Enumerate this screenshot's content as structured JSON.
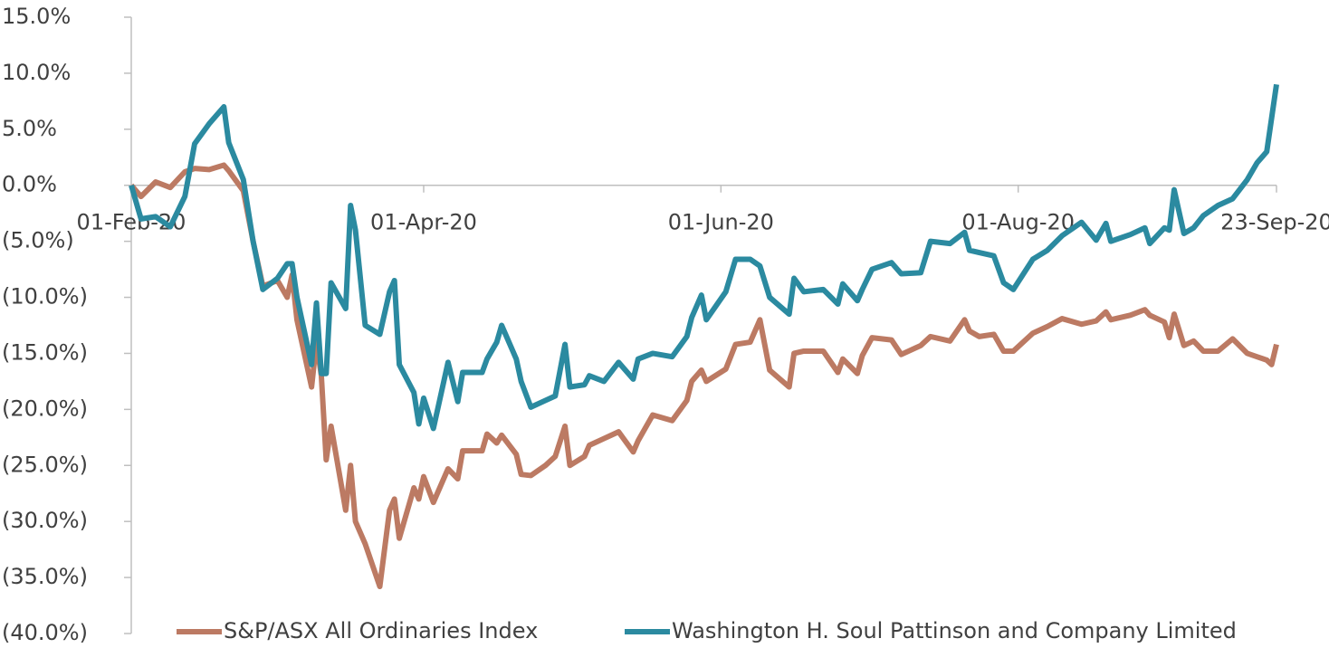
{
  "chart_data": {
    "type": "line",
    "x": [
      "01-Feb-20",
      "03-Feb-20",
      "06-Feb-20",
      "09-Feb-20",
      "12-Feb-20",
      "14-Feb-20",
      "17-Feb-20",
      "20-Feb-20",
      "21-Feb-20",
      "24-Feb-20",
      "26-Feb-20",
      "28-Feb-20",
      "02-Mar-20",
      "04-Mar-20",
      "05-Mar-20",
      "06-Mar-20",
      "09-Mar-20",
      "10-Mar-20",
      "11-Mar-20",
      "12-Mar-20",
      "13-Mar-20",
      "16-Mar-20",
      "17-Mar-20",
      "18-Mar-20",
      "20-Mar-20",
      "23-Mar-20",
      "25-Mar-20",
      "26-Mar-20",
      "27-Mar-20",
      "30-Mar-20",
      "31-Mar-20",
      "01-Apr-20",
      "03-Apr-20",
      "06-Apr-20",
      "08-Apr-20",
      "09-Apr-20",
      "13-Apr-20",
      "14-Apr-20",
      "16-Apr-20",
      "17-Apr-20",
      "20-Apr-20",
      "21-Apr-20",
      "23-Apr-20",
      "26-Apr-20",
      "28-Apr-20",
      "30-Apr-20",
      "01-May-20",
      "04-May-20",
      "05-May-20",
      "08-May-20",
      "11-May-20",
      "14-May-20",
      "15-May-20",
      "18-May-20",
      "22-May-20",
      "25-May-20",
      "26-May-20",
      "28-May-20",
      "29-May-20",
      "02-Jun-20",
      "04-Jun-20",
      "07-Jun-20",
      "09-Jun-20",
      "11-Jun-20",
      "15-Jun-20",
      "16-Jun-20",
      "18-Jun-20",
      "22-Jun-20",
      "25-Jun-20",
      "26-Jun-20",
      "29-Jun-20",
      "30-Jun-20",
      "02-Jul-20",
      "06-Jul-20",
      "08-Jul-20",
      "12-Jul-20",
      "14-Jul-20",
      "18-Jul-20",
      "21-Jul-20",
      "22-Jul-20",
      "24-Jul-20",
      "27-Jul-20",
      "29-Jul-20",
      "31-Jul-20",
      "04-Aug-20",
      "07-Aug-20",
      "10-Aug-20",
      "14-Aug-20",
      "17-Aug-20",
      "19-Aug-20",
      "20-Aug-20",
      "24-Aug-20",
      "27-Aug-20",
      "28-Aug-20",
      "31-Aug-20",
      "01-Sep-20",
      "02-Sep-20",
      "04-Sep-20",
      "06-Sep-20",
      "08-Sep-20",
      "11-Sep-20",
      "14-Sep-20",
      "17-Sep-20",
      "19-Sep-20",
      "21-Sep-20",
      "22-Sep-20",
      "23-Sep-20"
    ],
    "series": [
      {
        "name": "S&P/ASX All Ordinaries Index",
        "color": "#bc7a63",
        "values": [
          0,
          -1.0,
          0.3,
          -0.2,
          1.2,
          1.5,
          1.4,
          1.8,
          1.3,
          -0.5,
          -5,
          -9,
          -8.5,
          -10,
          -8,
          -12,
          -18,
          -14,
          -17,
          -24.5,
          -21.5,
          -29,
          -25,
          -30,
          -32,
          -35.8,
          -29,
          -28,
          -31.5,
          -27,
          -28,
          -26,
          -28.3,
          -25.3,
          -26.2,
          -23.7,
          -23.7,
          -22.2,
          -23,
          -22.3,
          -24,
          -25.8,
          -25.9,
          -25.0,
          -24.2,
          -21.5,
          -25,
          -24.2,
          -23.2,
          -22.6,
          -22.0,
          -23.8,
          -22.8,
          -20.5,
          -21,
          -19.2,
          -17.5,
          -16.5,
          -17.5,
          -16.4,
          -14.2,
          -14.0,
          -12,
          -16.5,
          -18,
          -15,
          -14.8,
          -14.8,
          -16.7,
          -15.5,
          -16.8,
          -15.2,
          -13.6,
          -13.8,
          -15.1,
          -14.3,
          -13.5,
          -13.9,
          -12.0,
          -13.0,
          -13.5,
          -13.3,
          -14.8,
          -14.8,
          -13.2,
          -12.6,
          -11.9,
          -12.4,
          -12.1,
          -11.3,
          -12.0,
          -11.6,
          -11.1,
          -11.6,
          -12.2,
          -13.6,
          -11.5,
          -14.3,
          -13.9,
          -14.8,
          -14.8,
          -13.7,
          -15.0,
          -15.3,
          -15.6,
          -16.0,
          -14.2
        ]
      },
      {
        "name": "Washington H. Soul Pattinson and Company Limited",
        "color": "#2b8aa0",
        "values": [
          0,
          -3.0,
          -2.8,
          -3.7,
          -1,
          3.7,
          5.5,
          7.0,
          3.8,
          0.5,
          -5,
          -9.3,
          -8.3,
          -7,
          -7,
          -10,
          -16,
          -10.5,
          -16.8,
          -16.8,
          -8.7,
          -11,
          -1.8,
          -4,
          -12.5,
          -13.3,
          -9.5,
          -8.5,
          -16,
          -18.5,
          -21.3,
          -19,
          -21.7,
          -15.8,
          -19.3,
          -16.7,
          -16.7,
          -15.5,
          -14,
          -12.5,
          -15.5,
          -17.5,
          -19.8,
          -19.2,
          -18.8,
          -14.2,
          -18,
          -17.8,
          -17.0,
          -17.5,
          -15.8,
          -17.3,
          -15.5,
          -15.0,
          -15.3,
          -13.5,
          -11.8,
          -9.8,
          -12,
          -9.5,
          -6.6,
          -6.6,
          -7.2,
          -10,
          -11.5,
          -8.3,
          -9.5,
          -9.3,
          -10.6,
          -8.8,
          -10.3,
          -9.3,
          -7.5,
          -6.9,
          -7.9,
          -7.8,
          -5,
          -5.2,
          -4.2,
          -5.8,
          -6,
          -6.3,
          -8.7,
          -9.3,
          -6.6,
          -5.8,
          -4.5,
          -3.3,
          -4.9,
          -3.4,
          -5.0,
          -4.4,
          -3.8,
          -5.2,
          -3.8,
          -4.0,
          -0.4,
          -4.3,
          -3.8,
          -2.7,
          -1.8,
          -1.2,
          0.5,
          2.0,
          3.0,
          6,
          9
        ]
      }
    ],
    "xlim": [
      "01-Feb-20",
      "23-Sep-20"
    ],
    "xticks": [
      "01-Feb-20",
      "01-Apr-20",
      "01-Jun-20",
      "01-Aug-20",
      "23-Sep-20"
    ],
    "ylim": [
      -40,
      15
    ],
    "yticks": [
      {
        "value": -40,
        "label": "(40.0%)"
      },
      {
        "value": -35,
        "label": "(35.0%)"
      },
      {
        "value": -30,
        "label": "(30.0%)"
      },
      {
        "value": -25,
        "label": "(25.0%)"
      },
      {
        "value": -20,
        "label": "(20.0%)"
      },
      {
        "value": -15,
        "label": "(15.0%)"
      },
      {
        "value": -10,
        "label": "(10.0%)"
      },
      {
        "value": -5,
        "label": "(5.0%)"
      },
      {
        "value": 0,
        "label": "0.0%"
      },
      {
        "value": 5,
        "label": "5.0%"
      },
      {
        "value": 10,
        "label": "10.0%"
      },
      {
        "value": 15,
        "label": "15.0%"
      }
    ],
    "legend": "bottom"
  }
}
